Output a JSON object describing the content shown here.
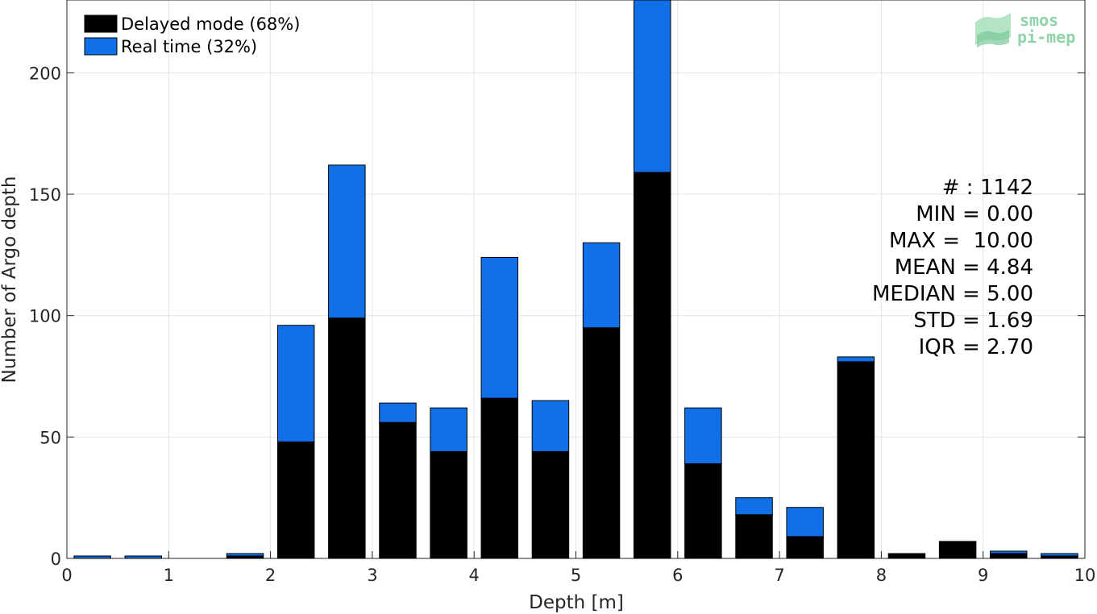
{
  "chart_data": {
    "type": "bar",
    "stacked": true,
    "xlabel": "Depth [m]",
    "ylabel": "Number of Argo depth",
    "xlim": [
      0,
      10
    ],
    "ylim": [
      0,
      230
    ],
    "xticks": [
      "0",
      "1",
      "2",
      "3",
      "4",
      "5",
      "6",
      "7",
      "8",
      "9",
      "10"
    ],
    "yticks": [
      "0",
      "50",
      "100",
      "150",
      "200"
    ],
    "grid": true,
    "legend_position": "top-left",
    "bin_centers": [
      0.25,
      0.75,
      1.25,
      1.75,
      2.25,
      2.75,
      3.25,
      3.75,
      4.25,
      4.75,
      5.25,
      5.75,
      6.25,
      6.75,
      7.25,
      7.75,
      8.25,
      8.75,
      9.25,
      9.75
    ],
    "series": [
      {
        "name": "Delayed mode (68%)",
        "color": "#000000",
        "values": [
          0,
          0,
          0,
          1,
          48,
          99,
          56,
          44,
          66,
          44,
          95,
          159,
          39,
          18,
          9,
          81,
          2,
          7,
          2,
          1
        ]
      },
      {
        "name": "Real time (32%)",
        "color": "#1170e8",
        "values": [
          1,
          1,
          0,
          1,
          48,
          63,
          8,
          18,
          58,
          21,
          35,
          71,
          23,
          7,
          12,
          2,
          0,
          0,
          1,
          1
        ]
      }
    ],
    "annotations": [
      "# : 1142",
      "MIN = 0.00",
      "MAX =  10.00",
      "MEAN = 4.84",
      "MEDIAN = 5.00",
      "STD = 1.69",
      "IQR = 2.70"
    ]
  },
  "logo": {
    "line1": "smos",
    "line2": "pi-mep"
  }
}
